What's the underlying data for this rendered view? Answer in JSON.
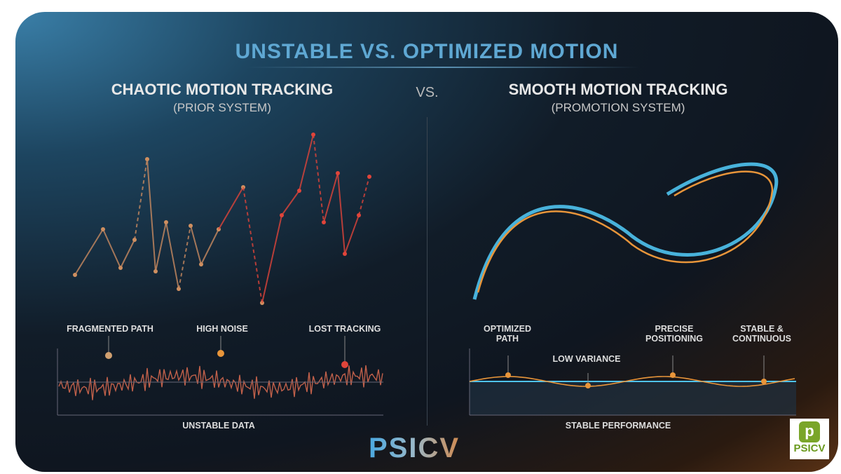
{
  "title": "UNSTABLE VS. OPTIMIZED MOTION",
  "left": {
    "heading": "CHAOTIC MOTION TRACKING",
    "subheading": "(PRIOR SYSTEM)",
    "labels": [
      "FRAGMENTED PATH",
      "HIGH NOISE",
      "LOST TRACKING"
    ],
    "axis_label": "UNSTABLE DATA"
  },
  "vs": "VS.",
  "right": {
    "heading": "SMOOTH MOTION TRACKING",
    "subheading": "(PROMOTION SYSTEM)",
    "labels": [
      "OPTIMIZED PATH",
      "LOW VARIANCE",
      "PRECISE POSITIONING",
      "STABLE & CONTINUOUS"
    ],
    "axis_label": "STABLE PERFORMANCE"
  },
  "logo": "PSICV",
  "badge": {
    "icon": "p-icon",
    "text": "PSICV"
  },
  "colors": {
    "accent": "#5fa8d3",
    "orange": "#e8953a",
    "red": "#e0443a",
    "cyan": "#4fc3f0"
  }
}
